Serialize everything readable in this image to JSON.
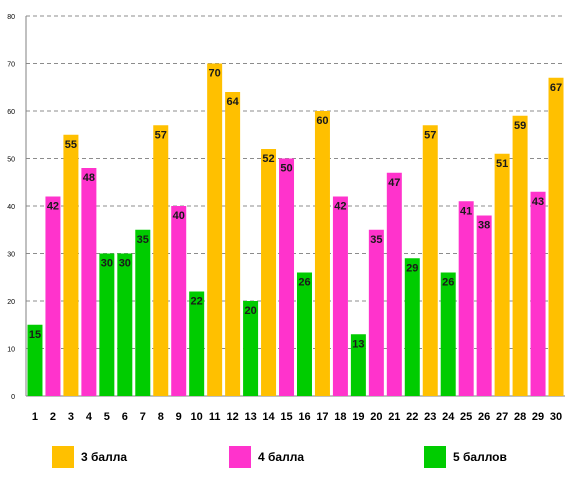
{
  "chart_data": {
    "type": "bar",
    "categories": [
      "1",
      "2",
      "3",
      "4",
      "5",
      "6",
      "7",
      "8",
      "9",
      "10",
      "11",
      "12",
      "13",
      "14",
      "15",
      "16",
      "17",
      "18",
      "19",
      "20",
      "21",
      "22",
      "23",
      "24",
      "25",
      "26",
      "27",
      "28",
      "29",
      "30"
    ],
    "values": [
      15,
      42,
      55,
      48,
      30,
      30,
      35,
      57,
      40,
      22,
      70,
      64,
      20,
      52,
      50,
      26,
      60,
      42,
      13,
      35,
      47,
      29,
      57,
      26,
      41,
      38,
      51,
      59,
      43,
      67
    ],
    "bar_series": [
      3,
      2,
      1,
      2,
      3,
      3,
      3,
      1,
      2,
      3,
      1,
      1,
      3,
      1,
      2,
      3,
      1,
      2,
      3,
      2,
      2,
      3,
      1,
      3,
      2,
      2,
      1,
      1,
      2,
      1
    ],
    "series": [
      {
        "name": "3 балла",
        "color": "#FFC000"
      },
      {
        "name": "4 балла",
        "color": "#FF33CC"
      },
      {
        "name": "5 баллов",
        "color": "#00CC00"
      }
    ],
    "yticks": [
      "0",
      "10",
      "20",
      "30",
      "40",
      "50",
      "60",
      "70",
      "80"
    ],
    "ylim": [
      0,
      80
    ],
    "grid": true,
    "legend_position": "bottom"
  }
}
